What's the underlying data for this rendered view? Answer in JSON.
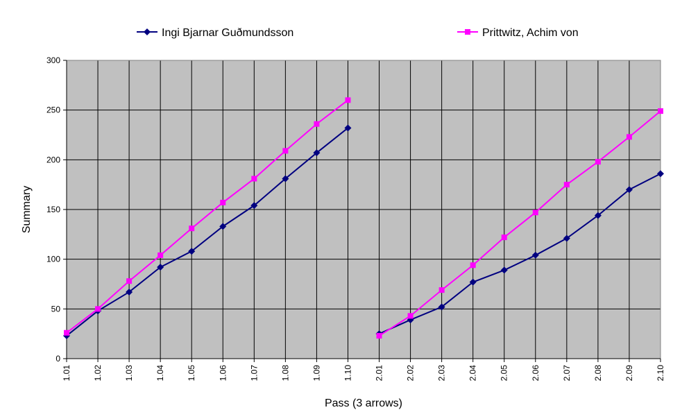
{
  "chart_data": {
    "type": "line",
    "xlabel": "Pass (3 arrows)",
    "ylabel": "Summary",
    "ylim": [
      0,
      300
    ],
    "yticks": [
      0,
      50,
      100,
      150,
      200,
      250,
      300
    ],
    "grid": true,
    "legend_position": "top",
    "plot_background": "#c0c0c0",
    "categories": [
      "1.01",
      "1.02",
      "1.03",
      "1.04",
      "1.05",
      "1.06",
      "1.07",
      "1.08",
      "1.09",
      "1.10",
      "2.01",
      "2.02",
      "2.03",
      "2.04",
      "2.05",
      "2.06",
      "2.07",
      "2.08",
      "2.09",
      "2.10"
    ],
    "series": [
      {
        "name": "Ingi Bjarnar Guðmundsson",
        "color": "#000080",
        "marker": "diamond",
        "values": [
          23,
          48,
          67,
          92,
          108,
          133,
          154,
          181,
          207,
          232,
          25,
          39,
          52,
          77,
          89,
          104,
          121,
          144,
          170,
          186
        ]
      },
      {
        "name": "Prittwitz, Achim von",
        "color": "#ff00ff",
        "marker": "square",
        "values": [
          26,
          50,
          78,
          104,
          131,
          157,
          181,
          209,
          236,
          260,
          23,
          43,
          69,
          94,
          122,
          147,
          175,
          198,
          223,
          249
        ]
      }
    ],
    "segment_breaks_after": [
      "1.10"
    ]
  }
}
